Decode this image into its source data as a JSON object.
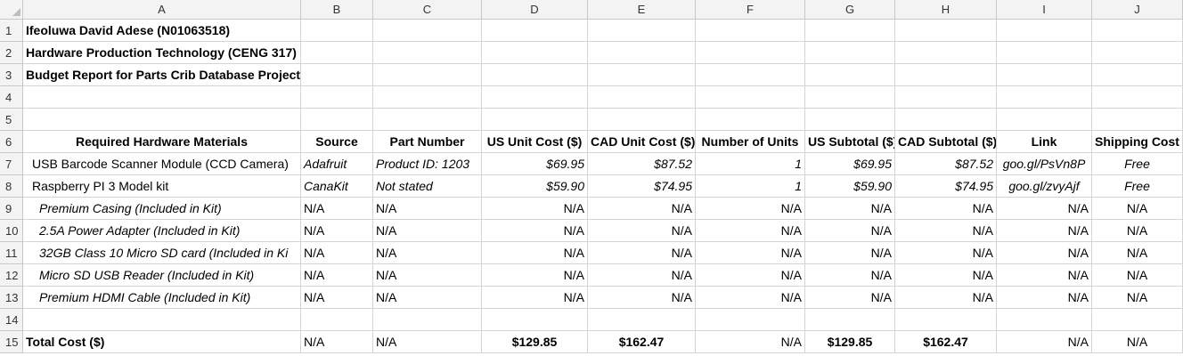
{
  "columns": [
    "A",
    "B",
    "C",
    "D",
    "E",
    "F",
    "G",
    "H",
    "I",
    "J"
  ],
  "row_numbers": [
    "1",
    "2",
    "3",
    "4",
    "5",
    "6",
    "7",
    "8",
    "9",
    "10",
    "11",
    "12",
    "13",
    "14",
    "15"
  ],
  "rows": [
    {
      "row": 1,
      "cells": {
        "A": "Ifeoluwa David Adese (N01063518)"
      }
    },
    {
      "row": 2,
      "cells": {
        "A": "Hardware Production Technology (CENG 317)"
      }
    },
    {
      "row": 3,
      "cells": {
        "A": "Budget Report for Parts Crib Database Project"
      }
    },
    {
      "row": 4,
      "cells": {}
    },
    {
      "row": 5,
      "cells": {}
    },
    {
      "row": 6,
      "cells": {
        "A": "Required Hardware Materials",
        "B": "Source",
        "C": "Part Number",
        "D": "US Unit Cost ($)",
        "E": "CAD Unit Cost ($)",
        "F": "Number of Units",
        "G": "US Subtotal ($)",
        "H": "CAD Subtotal ($)",
        "I": "Link",
        "J": "Shipping Cost"
      }
    },
    {
      "row": 7,
      "cells": {
        "A": "USB Barcode Scanner Module (CCD Camera)",
        "B": "Adafruit",
        "C": "Product ID: 1203",
        "D": "$69.95",
        "E": "$87.52",
        "F": "1",
        "G": "$69.95",
        "H": "$87.52",
        "I": "goo.gl/PsVn8P",
        "J": "Free"
      }
    },
    {
      "row": 8,
      "cells": {
        "A": "Raspberry PI 3 Model kit",
        "B": "CanaKit",
        "C": "Not stated",
        "D": "$59.90",
        "E": "$74.95",
        "F": "1",
        "G": "$59.90",
        "H": "$74.95",
        "I": "goo.gl/zvyAjf",
        "J": "Free"
      }
    },
    {
      "row": 9,
      "cells": {
        "A": "Premium Casing (Included in Kit)",
        "B": "N/A",
        "C": "N/A",
        "D": "N/A",
        "E": "N/A",
        "F": "N/A",
        "G": "N/A",
        "H": "N/A",
        "I": "N/A",
        "J": "N/A"
      }
    },
    {
      "row": 10,
      "cells": {
        "A": "2.5A Power Adapter (Included in Kit)",
        "B": "N/A",
        "C": "N/A",
        "D": "N/A",
        "E": "N/A",
        "F": "N/A",
        "G": "N/A",
        "H": "N/A",
        "I": "N/A",
        "J": "N/A"
      }
    },
    {
      "row": 11,
      "cells": {
        "A": "32GB Class 10 Micro SD card (Included in Ki",
        "B": "N/A",
        "C": "N/A",
        "D": "N/A",
        "E": "N/A",
        "F": "N/A",
        "G": "N/A",
        "H": "N/A",
        "I": "N/A",
        "J": "N/A"
      }
    },
    {
      "row": 12,
      "cells": {
        "A": "Micro SD USB Reader (Included in Kit)",
        "B": "N/A",
        "C": "N/A",
        "D": "N/A",
        "E": "N/A",
        "F": "N/A",
        "G": "N/A",
        "H": "N/A",
        "I": "N/A",
        "J": "N/A"
      }
    },
    {
      "row": 13,
      "cells": {
        "A": "Premium HDMI Cable (Included in Kit)",
        "B": "N/A",
        "C": "N/A",
        "D": "N/A",
        "E": "N/A",
        "F": "N/A",
        "G": "N/A",
        "H": "N/A",
        "I": "N/A",
        "J": "N/A"
      }
    },
    {
      "row": 14,
      "cells": {}
    },
    {
      "row": 15,
      "cells": {
        "A": "Total Cost ($)",
        "B": "N/A",
        "C": "N/A",
        "D": "$129.85",
        "E": "$162.47",
        "F": "N/A",
        "G": "$129.85",
        "H": "$162.47",
        "I": "N/A",
        "J": "N/A"
      }
    }
  ]
}
